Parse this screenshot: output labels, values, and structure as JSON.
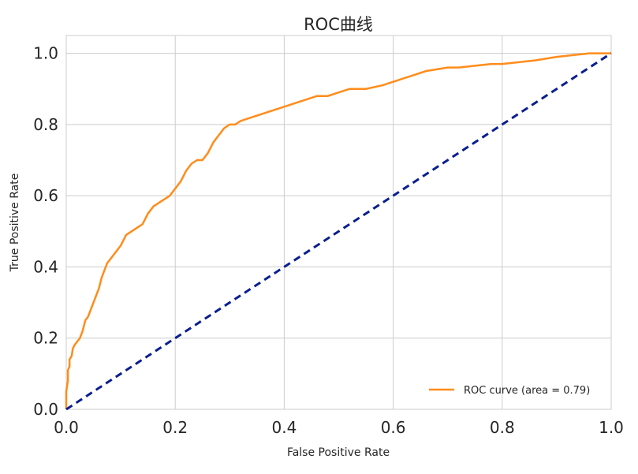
{
  "chart_data": {
    "type": "line",
    "title": "ROC曲线",
    "xlabel": "False Positive Rate",
    "ylabel": "True Positive Rate",
    "xlim": [
      0.0,
      1.0
    ],
    "ylim": [
      0.0,
      1.05
    ],
    "xticks": [
      "0.0",
      "0.2",
      "0.4",
      "0.6",
      "0.8",
      "1.0"
    ],
    "yticks": [
      "0.0",
      "0.2",
      "0.4",
      "0.6",
      "0.8",
      "1.0"
    ],
    "grid": true,
    "legend_position": "lower-right",
    "series": [
      {
        "name": "ROC curve (area = 0.79)",
        "color": "#ff8c1a",
        "style": "solid",
        "x": [
          0.0,
          0.0,
          0.003,
          0.003,
          0.006,
          0.006,
          0.01,
          0.012,
          0.015,
          0.02,
          0.025,
          0.03,
          0.035,
          0.04,
          0.045,
          0.05,
          0.055,
          0.06,
          0.065,
          0.07,
          0.075,
          0.08,
          0.085,
          0.09,
          0.095,
          0.1,
          0.11,
          0.12,
          0.13,
          0.14,
          0.15,
          0.16,
          0.17,
          0.18,
          0.19,
          0.2,
          0.21,
          0.22,
          0.23,
          0.24,
          0.25,
          0.26,
          0.27,
          0.28,
          0.29,
          0.3,
          0.31,
          0.32,
          0.34,
          0.36,
          0.38,
          0.4,
          0.42,
          0.44,
          0.46,
          0.48,
          0.5,
          0.52,
          0.55,
          0.58,
          0.6,
          0.62,
          0.64,
          0.66,
          0.68,
          0.7,
          0.72,
          0.75,
          0.78,
          0.8,
          0.83,
          0.86,
          0.9,
          0.93,
          0.96,
          0.98,
          1.0
        ],
        "y": [
          0.0,
          0.05,
          0.08,
          0.11,
          0.12,
          0.14,
          0.15,
          0.17,
          0.18,
          0.19,
          0.2,
          0.22,
          0.25,
          0.26,
          0.28,
          0.3,
          0.32,
          0.34,
          0.37,
          0.39,
          0.41,
          0.42,
          0.43,
          0.44,
          0.45,
          0.46,
          0.49,
          0.5,
          0.51,
          0.52,
          0.55,
          0.57,
          0.58,
          0.59,
          0.6,
          0.62,
          0.64,
          0.67,
          0.69,
          0.7,
          0.7,
          0.72,
          0.75,
          0.77,
          0.79,
          0.8,
          0.8,
          0.81,
          0.82,
          0.83,
          0.84,
          0.85,
          0.86,
          0.87,
          0.88,
          0.88,
          0.89,
          0.9,
          0.9,
          0.91,
          0.92,
          0.93,
          0.94,
          0.95,
          0.955,
          0.96,
          0.96,
          0.965,
          0.97,
          0.97,
          0.975,
          0.98,
          0.99,
          0.995,
          1.0,
          1.0,
          1.0
        ]
      },
      {
        "name": "",
        "color": "#0a1f8f",
        "style": "dashed",
        "x": [
          0.0,
          1.0
        ],
        "y": [
          0.0,
          1.0
        ]
      }
    ],
    "legend_entries": [
      "ROC curve (area = 0.79)"
    ]
  }
}
